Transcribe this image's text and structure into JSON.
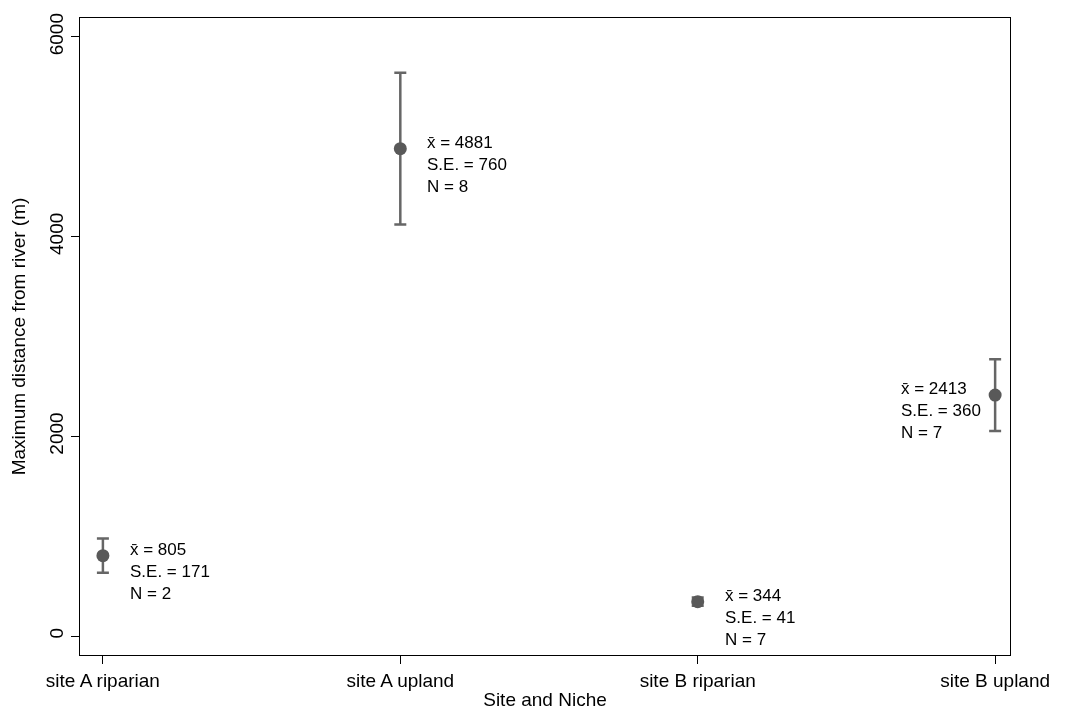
{
  "chart_data": {
    "type": "scatter",
    "xlabel": "Site and Niche",
    "ylabel": "Maximum distance from river (m)",
    "categories": [
      "site A riparian",
      "site A upland",
      "site B riparian",
      "site B upland"
    ],
    "values": [
      805,
      4881,
      344,
      2413
    ],
    "errors": [
      171,
      760,
      41,
      360
    ],
    "color": "#595959",
    "marker": "circle",
    "ylim": [
      -190,
      6190
    ],
    "yticks": [
      0,
      2000,
      4000,
      6000
    ],
    "annotations": [
      {
        "text": "x̄ = 805\nS.E. = 171\nN = 2",
        "x": "site A riparian",
        "y": 805
      },
      {
        "text": "x̄ = 4881\nS.E. = 760\nN = 8",
        "x": "site A upland",
        "y": 4881
      },
      {
        "text": "x̄ = 344\nS.E. = 41\nN = 7",
        "x": "site B riparian",
        "y": 344
      },
      {
        "text": "x̄ = 2413\nS.E. = 360\nN = 7",
        "x": "site B upland",
        "y": 2413
      }
    ]
  }
}
